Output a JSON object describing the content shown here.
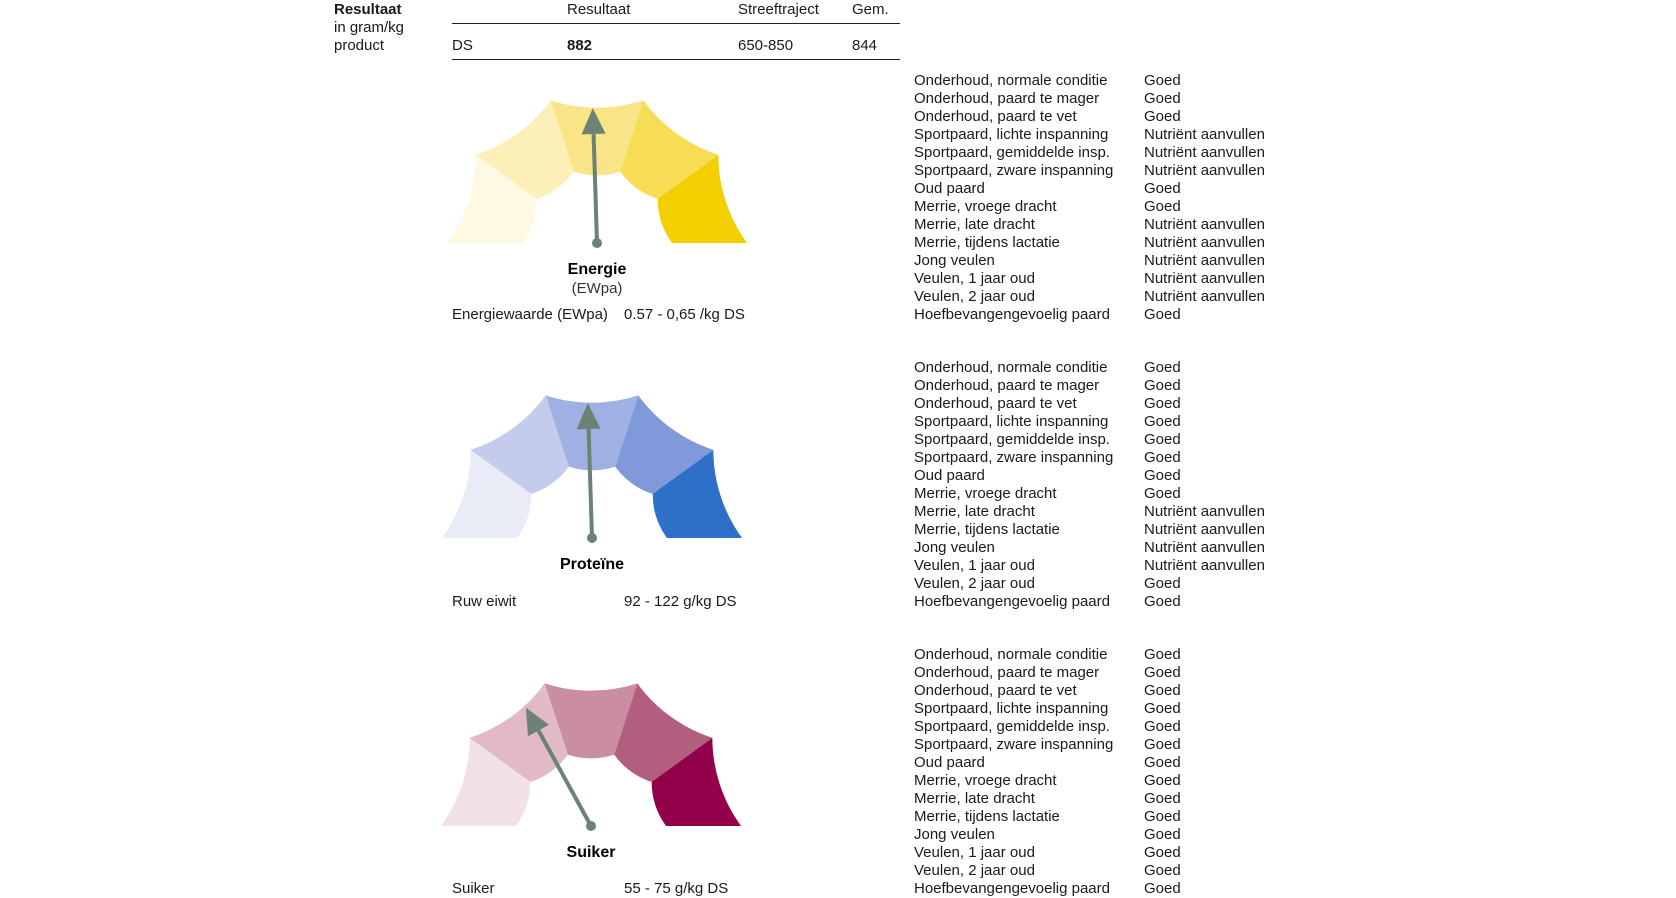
{
  "header": {
    "label_line1": "Resultaat",
    "label_line2": "in gram/kg",
    "label_line3": "product",
    "columns": [
      "Resultaat",
      "Streeftraject",
      "Gem."
    ],
    "row": {
      "name": "DS",
      "result": "882",
      "target": "650-850",
      "avg": "844"
    }
  },
  "gauges": [
    {
      "title": "Energie",
      "subtitle": "(EWpa)",
      "metric_label": "Energiewaarde (EWpa)",
      "metric_range": "0.57 - 0,65 /kg DS",
      "segment_colors": [
        "#fdf9e3",
        "#fcefb8",
        "#f9e588",
        "#f7dc56",
        "#f2cf00"
      ],
      "needle_fraction": 0.49,
      "needle_color": "#6b8274"
    },
    {
      "title": "Proteïne",
      "subtitle": "",
      "metric_label": "Ruw eiwit",
      "metric_range": "92 - 122 g/kg DS",
      "segment_colors": [
        "#e9ecf6",
        "#c3cdeb",
        "#9fb1e3",
        "#7f99da",
        "#2e6fc8"
      ],
      "needle_fraction": 0.49,
      "needle_color": "#6b8274"
    },
    {
      "title": "Suiker",
      "subtitle": "",
      "metric_label": "Suiker",
      "metric_range": "55 - 75 g/kg DS",
      "segment_colors": [
        "#f2e1e6",
        "#e2bac6",
        "#cb8da1",
        "#b25f7f",
        "#93004a"
      ],
      "needle_fraction": 0.34,
      "needle_color": "#6b8274"
    }
  ],
  "status_lists": [
    [
      {
        "category": "Onderhoud, normale conditie",
        "result": "Goed"
      },
      {
        "category": "Onderhoud, paard te mager",
        "result": "Goed"
      },
      {
        "category": "Onderhoud, paard te vet",
        "result": "Goed"
      },
      {
        "category": "Sportpaard, lichte inspanning",
        "result": "Nutriënt aanvullen"
      },
      {
        "category": "Sportpaard, gemiddelde insp.",
        "result": "Nutriënt aanvullen"
      },
      {
        "category": "Sportpaard, zware inspanning",
        "result": "Nutriënt aanvullen"
      },
      {
        "category": "Oud paard",
        "result": "Goed"
      },
      {
        "category": "Merrie, vroege dracht",
        "result": "Goed"
      },
      {
        "category": "Merrie, late dracht",
        "result": "Nutriënt aanvullen"
      },
      {
        "category": "Merrie, tijdens lactatie",
        "result": "Nutriënt aanvullen"
      },
      {
        "category": "Jong veulen",
        "result": "Nutriënt aanvullen"
      },
      {
        "category": "Veulen, 1 jaar oud",
        "result": "Nutriënt aanvullen"
      },
      {
        "category": "Veulen, 2 jaar oud",
        "result": "Nutriënt aanvullen"
      },
      {
        "category": "Hoefbevangengevoelig paard",
        "result": "Goed"
      }
    ],
    [
      {
        "category": "Onderhoud, normale conditie",
        "result": "Goed"
      },
      {
        "category": "Onderhoud, paard te mager",
        "result": "Goed"
      },
      {
        "category": "Onderhoud, paard te vet",
        "result": "Goed"
      },
      {
        "category": "Sportpaard, lichte inspanning",
        "result": "Goed"
      },
      {
        "category": "Sportpaard, gemiddelde insp.",
        "result": "Goed"
      },
      {
        "category": "Sportpaard, zware inspanning",
        "result": "Goed"
      },
      {
        "category": "Oud paard",
        "result": "Goed"
      },
      {
        "category": "Merrie, vroege dracht",
        "result": "Goed"
      },
      {
        "category": "Merrie, late dracht",
        "result": "Nutriënt aanvullen"
      },
      {
        "category": "Merrie, tijdens lactatie",
        "result": "Nutriënt aanvullen"
      },
      {
        "category": "Jong veulen",
        "result": "Nutriënt aanvullen"
      },
      {
        "category": "Veulen, 1 jaar oud",
        "result": "Nutriënt aanvullen"
      },
      {
        "category": "Veulen, 2 jaar oud",
        "result": "Goed"
      },
      {
        "category": "Hoefbevangengevoelig paard",
        "result": "Goed"
      }
    ],
    [
      {
        "category": "Onderhoud, normale conditie",
        "result": "Goed"
      },
      {
        "category": "Onderhoud, paard te mager",
        "result": "Goed"
      },
      {
        "category": "Onderhoud, paard te vet",
        "result": "Goed"
      },
      {
        "category": "Sportpaard, lichte inspanning",
        "result": "Goed"
      },
      {
        "category": "Sportpaard, gemiddelde insp.",
        "result": "Goed"
      },
      {
        "category": "Sportpaard, zware inspanning",
        "result": "Goed"
      },
      {
        "category": "Oud paard",
        "result": "Goed"
      },
      {
        "category": "Merrie, vroege dracht",
        "result": "Goed"
      },
      {
        "category": "Merrie, late dracht",
        "result": "Goed"
      },
      {
        "category": "Merrie, tijdens lactatie",
        "result": "Goed"
      },
      {
        "category": "Jong veulen",
        "result": "Goed"
      },
      {
        "category": "Veulen, 1 jaar oud",
        "result": "Goed"
      },
      {
        "category": "Veulen, 2 jaar oud",
        "result": "Goed"
      },
      {
        "category": "Hoefbevangengevoelig paard",
        "result": "Goed"
      }
    ]
  ]
}
